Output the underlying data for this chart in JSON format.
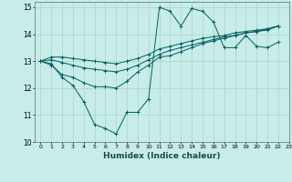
{
  "xlabel": "Humidex (Indice chaleur)",
  "ylabel": "",
  "background_color": "#c8ece8",
  "grid_color": "#a8d4ce",
  "line_color": "#006060",
  "xlim": [
    -0.5,
    23
  ],
  "ylim": [
    10,
    15.2
  ],
  "yticks": [
    10,
    11,
    12,
    13,
    14,
    15
  ],
  "xticks": [
    0,
    1,
    2,
    3,
    4,
    5,
    6,
    7,
    8,
    9,
    10,
    11,
    12,
    13,
    14,
    15,
    16,
    17,
    18,
    19,
    20,
    21,
    22,
    23
  ],
  "series": [
    [
      13.0,
      12.9,
      12.4,
      12.1,
      11.5,
      10.65,
      10.5,
      10.3,
      11.1,
      11.1,
      11.6,
      15.0,
      14.85,
      14.3,
      14.95,
      14.85,
      14.45,
      13.5,
      13.5,
      13.95,
      13.55,
      13.5,
      13.7
    ],
    [
      13.0,
      12.85,
      12.5,
      12.4,
      12.2,
      12.05,
      12.05,
      12.0,
      12.25,
      12.6,
      12.85,
      13.15,
      13.2,
      13.35,
      13.5,
      13.65,
      13.75,
      13.85,
      13.95,
      14.05,
      14.1,
      14.2,
      14.3
    ],
    [
      13.0,
      13.05,
      12.95,
      12.85,
      12.75,
      12.7,
      12.65,
      12.6,
      12.7,
      12.85,
      13.05,
      13.25,
      13.4,
      13.5,
      13.6,
      13.7,
      13.8,
      13.9,
      13.95,
      14.05,
      14.1,
      14.15,
      14.3
    ],
    [
      13.0,
      13.15,
      13.15,
      13.1,
      13.05,
      13.0,
      12.95,
      12.9,
      13.0,
      13.1,
      13.25,
      13.45,
      13.55,
      13.65,
      13.75,
      13.85,
      13.9,
      13.95,
      14.05,
      14.1,
      14.15,
      14.2,
      14.3
    ]
  ]
}
